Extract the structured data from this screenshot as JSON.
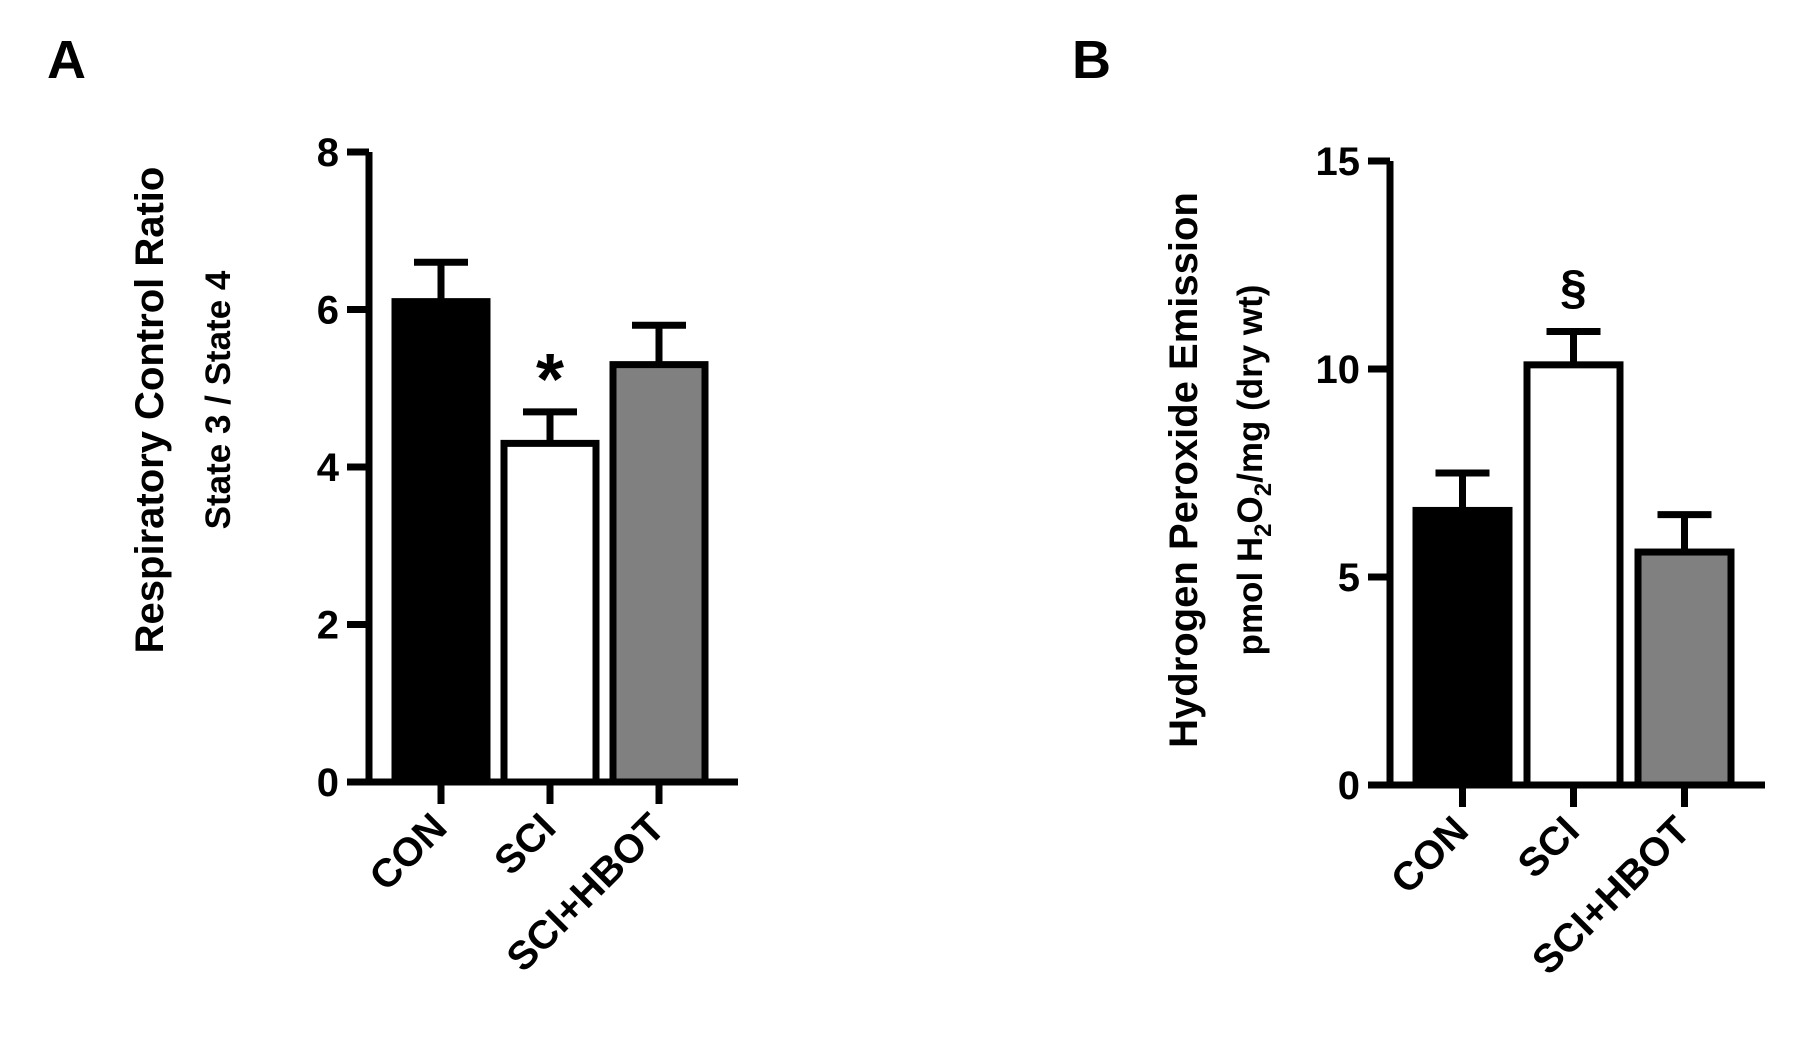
{
  "chart_data": [
    {
      "panel": "A",
      "type": "bar",
      "ylabel": "Respiratory Control Ratio",
      "ylabel_sub": "State 3 / State 4",
      "ylim": [
        0,
        8
      ],
      "yticks": [
        0,
        2,
        4,
        6,
        8
      ],
      "categories": [
        "CON",
        "SCI",
        "SCI+HBOT"
      ],
      "values": [
        6.1,
        4.3,
        5.3
      ],
      "errors": [
        0.5,
        0.4,
        0.5
      ],
      "colors": [
        "#000000",
        "#ffffff",
        "#808080"
      ],
      "annotations": [
        "",
        "*",
        ""
      ]
    },
    {
      "panel": "B",
      "type": "bar",
      "ylabel": "Hydrogen Peroxide Emission",
      "ylabel_sub_parts": [
        "pmol H",
        "2",
        "O",
        "2",
        "/mg (dry wt)"
      ],
      "ylim": [
        0,
        15
      ],
      "yticks": [
        0,
        5,
        10,
        15
      ],
      "categories": [
        "CON",
        "SCI",
        "SCI+HBOT"
      ],
      "values": [
        6.6,
        10.1,
        5.6
      ],
      "errors": [
        0.9,
        0.8,
        0.9
      ],
      "colors": [
        "#000000",
        "#ffffff",
        "#808080"
      ],
      "annotations": [
        "",
        "§",
        ""
      ]
    }
  ]
}
